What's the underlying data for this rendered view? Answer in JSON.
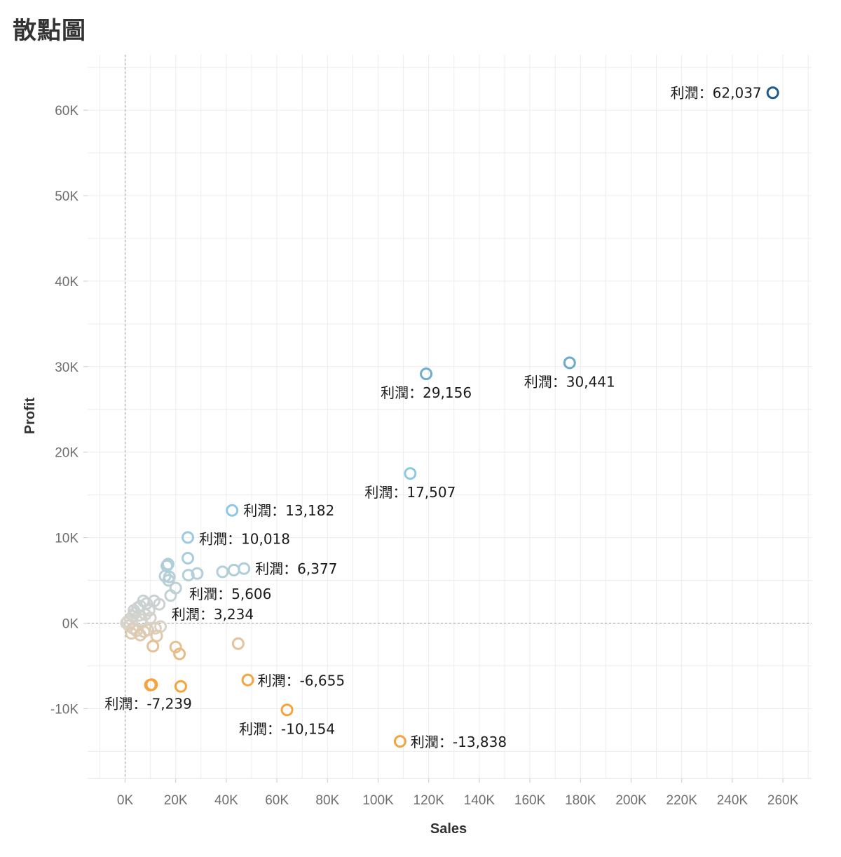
{
  "title": "散點圖",
  "chart_data": {
    "type": "scatter",
    "title": "散點圖",
    "xlabel": "Sales",
    "ylabel": "Profit",
    "xlim": [
      -15000,
      270000
    ],
    "ylim": [
      -18500,
      66000
    ],
    "x_ticks": [
      0,
      20000,
      40000,
      60000,
      80000,
      100000,
      120000,
      140000,
      160000,
      180000,
      200000,
      220000,
      240000,
      260000
    ],
    "x_tick_labels": [
      "0K",
      "20K",
      "40K",
      "60K",
      "80K",
      "100K",
      "120K",
      "140K",
      "160K",
      "180K",
      "200K",
      "220K",
      "240K",
      "260K"
    ],
    "y_ticks": [
      -10000,
      0,
      10000,
      20000,
      30000,
      40000,
      50000,
      60000
    ],
    "y_tick_labels": [
      "-10K",
      "0K",
      "10K",
      "20K",
      "30K",
      "40K",
      "50K",
      "60K"
    ],
    "grid": true,
    "reference_lines": {
      "x": 0,
      "y": 0
    },
    "color_scale": {
      "negative": "#f5a33c",
      "neutral": "#d9d4cc",
      "positive": "#8cc9e6",
      "max_positive": "#1e5a8a"
    },
    "points": [
      {
        "x": 256000,
        "y": 62037,
        "label": "利潤：62,037"
      },
      {
        "x": 175700,
        "y": 30441,
        "label": "利潤：30,441"
      },
      {
        "x": 119000,
        "y": 29156,
        "label": "利潤：29,156"
      },
      {
        "x": 112700,
        "y": 17507,
        "label": "利潤：17,507"
      },
      {
        "x": 42300,
        "y": 13182,
        "label": "利潤：13,182"
      },
      {
        "x": 24800,
        "y": 10018,
        "label": "利潤：10,018"
      },
      {
        "x": 47000,
        "y": 6377,
        "label": "利潤：6,377"
      },
      {
        "x": 25000,
        "y": 5606,
        "label": "利潤：5,606"
      },
      {
        "x": 18000,
        "y": 3234,
        "label": "利潤：3,234"
      },
      {
        "x": 48500,
        "y": -6655,
        "label": "利潤：-6,655"
      },
      {
        "x": 10000,
        "y": -7239,
        "label": "利潤：-7,239"
      },
      {
        "x": 64000,
        "y": -10154,
        "label": "利潤：-10,154"
      },
      {
        "x": 108700,
        "y": -13838,
        "label": "利潤：-13,838"
      },
      {
        "x": 24800,
        "y": 7600
      },
      {
        "x": 17000,
        "y": 6900
      },
      {
        "x": 16500,
        "y": 6700
      },
      {
        "x": 15800,
        "y": 5500
      },
      {
        "x": 17500,
        "y": 5400
      },
      {
        "x": 17200,
        "y": 5000
      },
      {
        "x": 28500,
        "y": 5800
      },
      {
        "x": 38500,
        "y": 6000
      },
      {
        "x": 43000,
        "y": 6200
      },
      {
        "x": 20000,
        "y": 4100
      },
      {
        "x": 11500,
        "y": 2600
      },
      {
        "x": 8500,
        "y": 2300
      },
      {
        "x": 7200,
        "y": 2600
      },
      {
        "x": 6000,
        "y": 2000
      },
      {
        "x": 5000,
        "y": 1800
      },
      {
        "x": 13500,
        "y": 2200
      },
      {
        "x": 9500,
        "y": 1500
      },
      {
        "x": 4000,
        "y": 1200
      },
      {
        "x": 3000,
        "y": 800
      },
      {
        "x": 2000,
        "y": 500
      },
      {
        "x": 1000,
        "y": 200
      },
      {
        "x": 500,
        "y": 0
      },
      {
        "x": 1500,
        "y": -300
      },
      {
        "x": 3000,
        "y": -600
      },
      {
        "x": 4500,
        "y": -900
      },
      {
        "x": 2500,
        "y": -1200
      },
      {
        "x": 6000,
        "y": -1400
      },
      {
        "x": 7500,
        "y": -1000
      },
      {
        "x": 9000,
        "y": -800
      },
      {
        "x": 12000,
        "y": -600
      },
      {
        "x": 14000,
        "y": -400
      },
      {
        "x": 12500,
        "y": -1500
      },
      {
        "x": 11000,
        "y": -2700
      },
      {
        "x": 20000,
        "y": -2800
      },
      {
        "x": 21500,
        "y": -3600
      },
      {
        "x": 44700,
        "y": -2400
      },
      {
        "x": 10500,
        "y": -7200
      },
      {
        "x": 22000,
        "y": -7400
      },
      {
        "x": 6500,
        "y": 400
      },
      {
        "x": 8000,
        "y": 1000
      },
      {
        "x": 10000,
        "y": 600
      },
      {
        "x": 3500,
        "y": 1500
      },
      {
        "x": 5500,
        "y": 900
      }
    ]
  }
}
